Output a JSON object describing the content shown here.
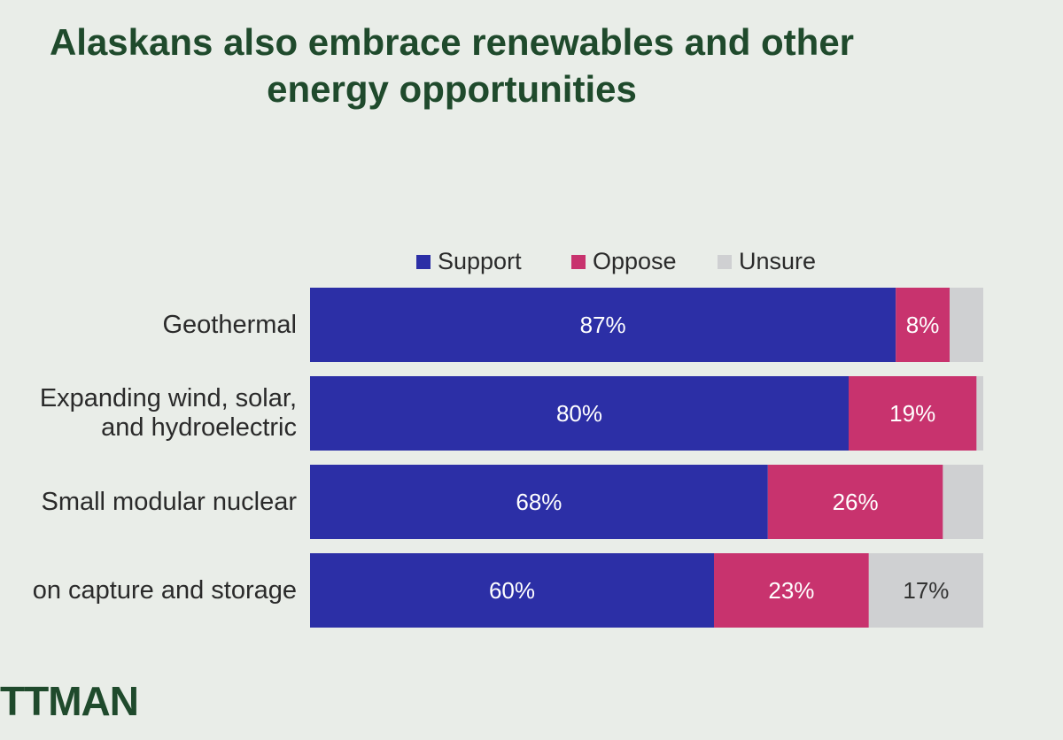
{
  "chart_data": {
    "type": "bar",
    "orientation": "horizontal",
    "stacked": true,
    "title": "Alaskans also embrace renewables and other energy opportunities",
    "categories": [
      "Geothermal",
      "Expanding wind, solar, and hydroelectric",
      "Small modular nuclear",
      "on capture and storage"
    ],
    "series": [
      {
        "name": "Support",
        "color": "#2c2fa6",
        "values": [
          87,
          80,
          68,
          60
        ],
        "value_labels": [
          "87%",
          "80%",
          "68%",
          "60%"
        ]
      },
      {
        "name": "Oppose",
        "color": "#c8336e",
        "values": [
          8,
          19,
          26,
          23
        ],
        "value_labels": [
          "8%",
          "19%",
          "26%",
          "23%"
        ]
      },
      {
        "name": "Unsure",
        "color": "#cfd0d2",
        "values": [
          5,
          1,
          6,
          17
        ],
        "value_labels": [
          null,
          null,
          null,
          "17%"
        ]
      }
    ],
    "legend": "top"
  },
  "footer_logo": "TTMAN"
}
